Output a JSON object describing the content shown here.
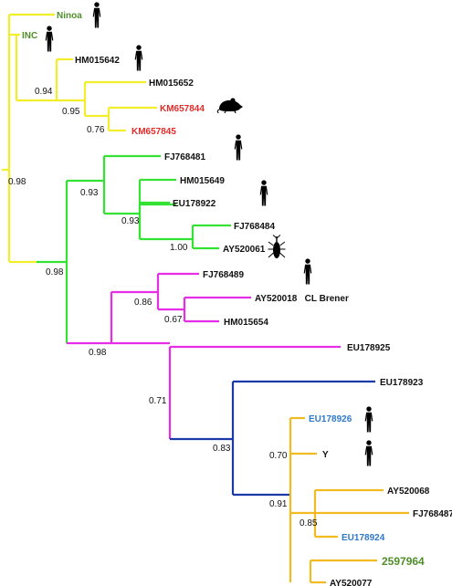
{
  "colors": {
    "clade_yellow": "#f2ef2a",
    "clade_green": "#33e233",
    "clade_magenta": "#e52ee5",
    "clade_blue": "#1a3aa8",
    "clade_orange": "#f2bb22",
    "label_black": "#111111",
    "label_red": "#e32b2b",
    "label_green": "#4f8f2a",
    "label_blue": "#2f78c8"
  },
  "leaves": [
    {
      "label": "Ninoa",
      "color": "label_green",
      "icon": "human-icon"
    },
    {
      "label": "INC",
      "color": "label_green",
      "icon": "human-icon"
    },
    {
      "label": "HM015642",
      "color": "label_black",
      "icon": "human-icon"
    },
    {
      "label": "HM015652",
      "color": "label_black",
      "icon": ""
    },
    {
      "label": "KM657844",
      "color": "label_red",
      "icon": "rodent-icon"
    },
    {
      "label": "KM657845",
      "color": "label_red",
      "icon": ""
    },
    {
      "label": "FJ768481",
      "color": "label_black",
      "icon": "human-icon"
    },
    {
      "label": "HM015649",
      "color": "label_black",
      "icon": ""
    },
    {
      "label": "EU178922",
      "color": "label_black",
      "icon": "human-icon"
    },
    {
      "label": "FJ768484",
      "color": "label_black",
      "icon": ""
    },
    {
      "label": "AY520061",
      "color": "label_black",
      "icon": "triatomine-bug-icon"
    },
    {
      "label": "FJ768489",
      "color": "label_black",
      "icon": "human-icon"
    },
    {
      "label": "AY520018   CL Brener",
      "color": "label_black",
      "icon": ""
    },
    {
      "label": "HM015654",
      "color": "label_black",
      "icon": ""
    },
    {
      "label": "EU178925",
      "color": "label_black",
      "icon": ""
    },
    {
      "label": "EU178923",
      "color": "label_black",
      "icon": ""
    },
    {
      "label": "EU178926",
      "color": "label_blue",
      "icon": "human-icon"
    },
    {
      "label": "Y",
      "color": "label_black",
      "icon": "human-icon"
    },
    {
      "label": "AY520068",
      "color": "label_black",
      "icon": ""
    },
    {
      "label": "FJ768487",
      "color": "label_black",
      "icon": ""
    },
    {
      "label": "EU178924",
      "color": "label_blue",
      "icon": ""
    },
    {
      "label": "2597964",
      "color": "label_green",
      "icon": ""
    },
    {
      "label": "AY520077",
      "color": "label_black",
      "icon": ""
    }
  ],
  "support_values": [
    "0.94",
    "0.95",
    "0.76",
    "0.98",
    "0.93",
    "0.93",
    "1.00",
    "0.98",
    "0.86",
    "0.67",
    "0.98",
    "0.71",
    "0.83",
    "0.70",
    "0.91",
    "0.85"
  ]
}
